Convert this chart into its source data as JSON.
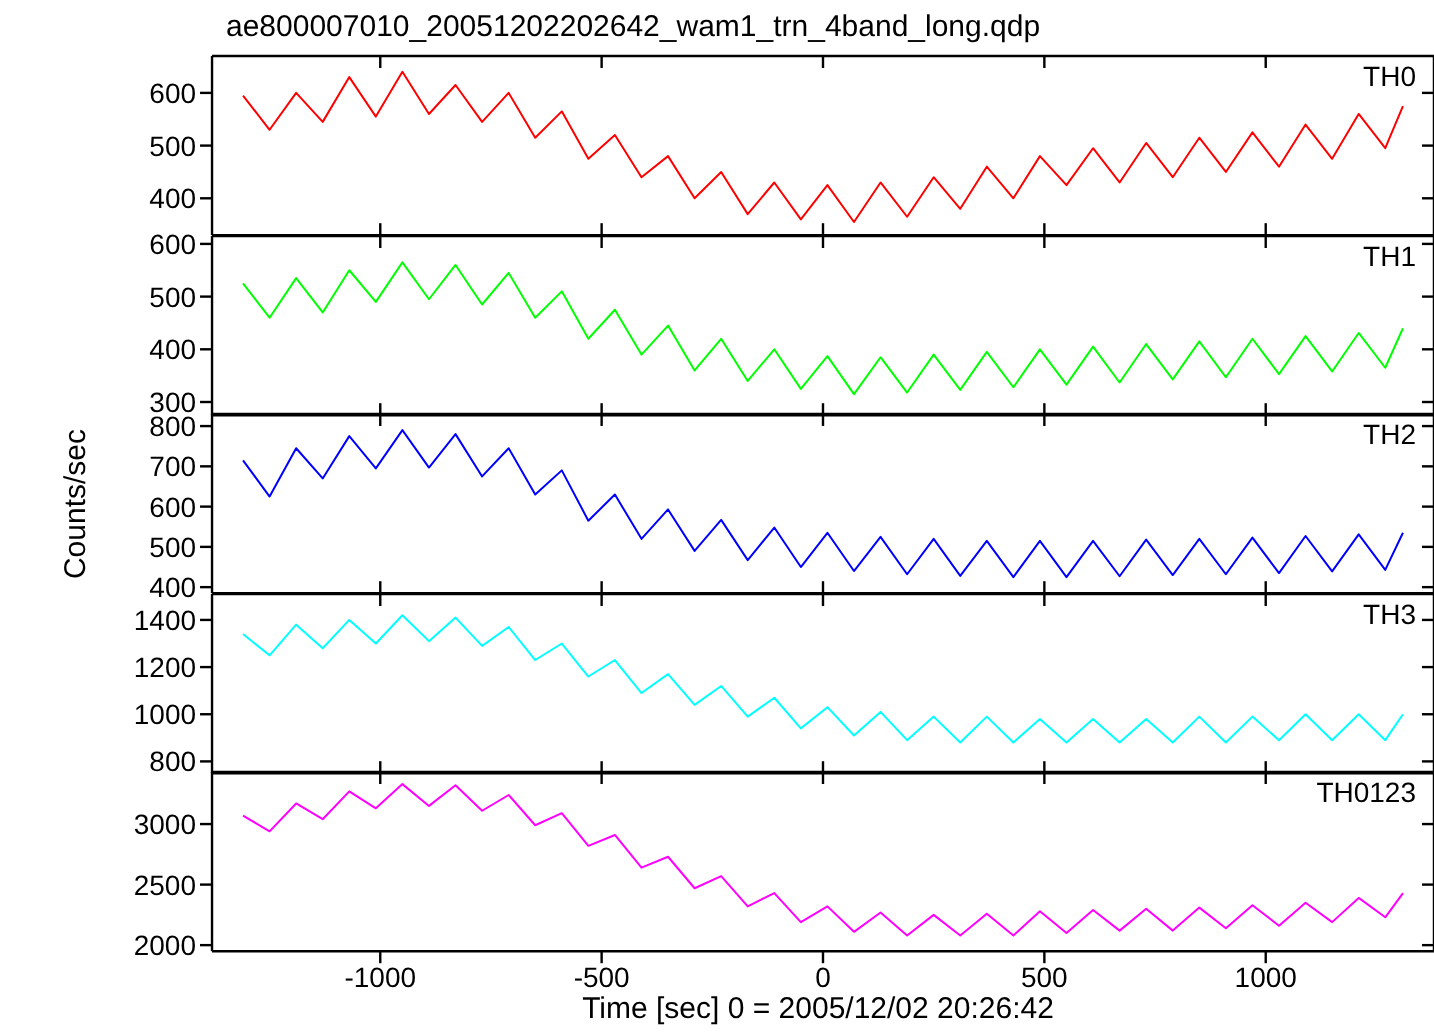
{
  "chart_data": [
    {
      "type": "line",
      "title": "ae800007010_20051202202642_wam1_trn_4band_long.qdp",
      "marker": "none",
      "tick_labels": "y",
      "xlim": [
        -1380,
        1380
      ],
      "xticks": [
        -1000,
        -500,
        0,
        500,
        1000
      ],
      "ylim": [
        330,
        670
      ],
      "yticks": [
        400,
        500,
        600
      ],
      "x": [
        -1310,
        -1250,
        -1190,
        -1130,
        -1070,
        -1010,
        -950,
        -890,
        -830,
        -770,
        -710,
        -650,
        -590,
        -530,
        -470,
        -410,
        -350,
        -290,
        -230,
        -170,
        -110,
        -50,
        10,
        70,
        130,
        190,
        250,
        310,
        370,
        430,
        490,
        550,
        610,
        670,
        730,
        790,
        850,
        910,
        970,
        1030,
        1090,
        1150,
        1210,
        1270,
        1310
      ],
      "series": [
        {
          "name": "TH0",
          "color": "#ff0000",
          "values": [
            595,
            530,
            600,
            545,
            630,
            555,
            640,
            560,
            615,
            545,
            600,
            515,
            565,
            475,
            520,
            440,
            480,
            400,
            450,
            370,
            430,
            360,
            425,
            355,
            430,
            365,
            440,
            380,
            460,
            400,
            480,
            425,
            495,
            430,
            505,
            440,
            515,
            450,
            525,
            460,
            540,
            475,
            560,
            495,
            575
          ]
        }
      ]
    },
    {
      "type": "line",
      "marker": "none",
      "tick_labels": "y",
      "xlim": [
        -1380,
        1380
      ],
      "xticks": [
        -1000,
        -500,
        0,
        500,
        1000
      ],
      "ylim": [
        275,
        615
      ],
      "yticks": [
        300,
        400,
        500,
        600
      ],
      "x": [
        -1310,
        -1250,
        -1190,
        -1130,
        -1070,
        -1010,
        -950,
        -890,
        -830,
        -770,
        -710,
        -650,
        -590,
        -530,
        -470,
        -410,
        -350,
        -290,
        -230,
        -170,
        -110,
        -50,
        10,
        70,
        130,
        190,
        250,
        310,
        370,
        430,
        490,
        550,
        610,
        670,
        730,
        790,
        850,
        910,
        970,
        1030,
        1090,
        1150,
        1210,
        1270,
        1310
      ],
      "series": [
        {
          "name": "TH1",
          "color": "#00ff00",
          "values": [
            525,
            460,
            535,
            470,
            550,
            490,
            565,
            495,
            560,
            485,
            545,
            460,
            510,
            420,
            475,
            390,
            445,
            360,
            420,
            340,
            400,
            325,
            387,
            315,
            385,
            318,
            390,
            323,
            395,
            328,
            400,
            333,
            405,
            337,
            410,
            343,
            415,
            347,
            420,
            353,
            425,
            358,
            431,
            365,
            440
          ]
        }
      ]
    },
    {
      "type": "line",
      "ylabel": "Counts/sec",
      "marker": "none",
      "tick_labels": "y",
      "xlim": [
        -1380,
        1380
      ],
      "xticks": [
        -1000,
        -500,
        0,
        500,
        1000
      ],
      "ylim": [
        385,
        830
      ],
      "yticks": [
        400,
        500,
        600,
        700,
        800
      ],
      "x": [
        -1310,
        -1250,
        -1190,
        -1130,
        -1070,
        -1010,
        -950,
        -890,
        -830,
        -770,
        -710,
        -650,
        -590,
        -530,
        -470,
        -410,
        -350,
        -290,
        -230,
        -170,
        -110,
        -50,
        10,
        70,
        130,
        190,
        250,
        310,
        370,
        430,
        490,
        550,
        610,
        670,
        730,
        790,
        850,
        910,
        970,
        1030,
        1090,
        1150,
        1210,
        1270,
        1310
      ],
      "series": [
        {
          "name": "TH2",
          "color": "#0000ff",
          "values": [
            715,
            625,
            745,
            670,
            775,
            695,
            790,
            697,
            780,
            675,
            745,
            630,
            690,
            565,
            630,
            520,
            593,
            490,
            567,
            467,
            548,
            450,
            535,
            440,
            525,
            432,
            520,
            428,
            515,
            425,
            515,
            425,
            515,
            427,
            518,
            430,
            520,
            432,
            523,
            435,
            527,
            439,
            531,
            443,
            535
          ]
        }
      ]
    },
    {
      "type": "line",
      "marker": "none",
      "tick_labels": "y",
      "xlim": [
        -1380,
        1380
      ],
      "xticks": [
        -1000,
        -500,
        0,
        500,
        1000
      ],
      "ylim": [
        750,
        1510
      ],
      "yticks": [
        800,
        1000,
        1200,
        1400
      ],
      "x": [
        -1310,
        -1250,
        -1190,
        -1130,
        -1070,
        -1010,
        -950,
        -890,
        -830,
        -770,
        -710,
        -650,
        -590,
        -530,
        -470,
        -410,
        -350,
        -290,
        -230,
        -170,
        -110,
        -50,
        10,
        70,
        130,
        190,
        250,
        310,
        370,
        430,
        490,
        550,
        610,
        670,
        730,
        790,
        850,
        910,
        970,
        1030,
        1090,
        1150,
        1210,
        1270,
        1310
      ],
      "series": [
        {
          "name": "TH3",
          "color": "#00ffff",
          "values": [
            1340,
            1250,
            1380,
            1280,
            1400,
            1300,
            1420,
            1310,
            1410,
            1290,
            1370,
            1230,
            1300,
            1160,
            1230,
            1090,
            1170,
            1040,
            1120,
            990,
            1070,
            940,
            1030,
            910,
            1010,
            890,
            990,
            880,
            990,
            880,
            980,
            880,
            980,
            880,
            980,
            880,
            990,
            880,
            990,
            890,
            1000,
            890,
            1000,
            890,
            1000
          ]
        }
      ]
    },
    {
      "type": "line",
      "xlabel": "Time [sec] 0 = 2005/12/02 20:26:42",
      "marker": "none",
      "xlim": [
        -1380,
        1380
      ],
      "xticks": [
        -1000,
        -500,
        0,
        500,
        1000
      ],
      "ylim": [
        1950,
        3430
      ],
      "yticks": [
        2000,
        2500,
        3000
      ],
      "x": [
        -1310,
        -1250,
        -1190,
        -1130,
        -1070,
        -1010,
        -950,
        -890,
        -830,
        -770,
        -710,
        -650,
        -590,
        -530,
        -470,
        -410,
        -350,
        -290,
        -230,
        -170,
        -110,
        -50,
        10,
        70,
        130,
        190,
        250,
        310,
        370,
        430,
        490,
        550,
        610,
        670,
        730,
        790,
        850,
        910,
        970,
        1030,
        1090,
        1150,
        1210,
        1270,
        1310
      ],
      "series": [
        {
          "name": "TH0123",
          "color": "#ff00ff",
          "values": [
            3070,
            2940,
            3170,
            3040,
            3270,
            3130,
            3330,
            3150,
            3320,
            3110,
            3240,
            2990,
            3090,
            2820,
            2910,
            2640,
            2730,
            2470,
            2570,
            2320,
            2430,
            2190,
            2320,
            2110,
            2270,
            2080,
            2250,
            2080,
            2260,
            2080,
            2280,
            2100,
            2290,
            2120,
            2300,
            2120,
            2310,
            2140,
            2330,
            2160,
            2350,
            2190,
            2390,
            2230,
            2430
          ]
        }
      ]
    }
  ]
}
